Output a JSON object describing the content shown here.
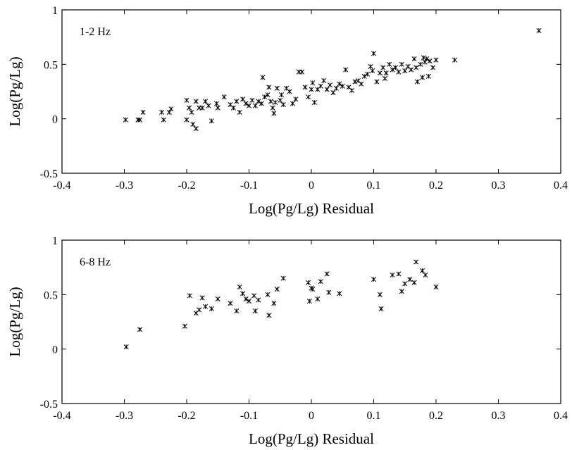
{
  "chart_data": [
    {
      "type": "scatter",
      "annotation": "1-2 Hz",
      "xlabel": "Log(Pg/Lg) Residual",
      "ylabel": "Log(Pg/Lg)",
      "xlim": [
        -0.4,
        0.4
      ],
      "ylim": [
        -0.5,
        1
      ],
      "xticks": [
        "-0.4",
        "-0.3",
        "-0.2",
        "-0.1",
        "0",
        "0.1",
        "0.2",
        "0.3",
        "0.4"
      ],
      "yticks": [
        "-0.5",
        "0",
        "0.5",
        "1"
      ],
      "marker": "x",
      "points": [
        [
          -0.298,
          -0.01
        ],
        [
          -0.278,
          -0.01
        ],
        [
          -0.275,
          -0.01
        ],
        [
          -0.27,
          0.06
        ],
        [
          -0.24,
          0.06
        ],
        [
          -0.237,
          -0.01
        ],
        [
          -0.228,
          0.06
        ],
        [
          -0.225,
          0.09
        ],
        [
          -0.2,
          0.17
        ],
        [
          -0.2,
          -0.01
        ],
        [
          -0.196,
          0.1
        ],
        [
          -0.192,
          0.06
        ],
        [
          -0.19,
          -0.05
        ],
        [
          -0.185,
          0.16
        ],
        [
          -0.185,
          -0.09
        ],
        [
          -0.18,
          0.1
        ],
        [
          -0.175,
          0.1
        ],
        [
          -0.17,
          0.16
        ],
        [
          -0.165,
          0.12
        ],
        [
          -0.16,
          -0.02
        ],
        [
          -0.152,
          0.14
        ],
        [
          -0.15,
          0.1
        ],
        [
          -0.14,
          0.2
        ],
        [
          -0.13,
          0.13
        ],
        [
          -0.125,
          0.1
        ],
        [
          -0.12,
          0.16
        ],
        [
          -0.115,
          0.06
        ],
        [
          -0.11,
          0.18
        ],
        [
          -0.105,
          0.14
        ],
        [
          -0.1,
          0.12
        ],
        [
          -0.095,
          0.17
        ],
        [
          -0.09,
          0.12
        ],
        [
          -0.085,
          0.16
        ],
        [
          -0.08,
          0.14
        ],
        [
          -0.078,
          0.38
        ],
        [
          -0.075,
          0.2
        ],
        [
          -0.07,
          0.22
        ],
        [
          -0.068,
          0.29
        ],
        [
          -0.065,
          0.16
        ],
        [
          -0.062,
          0.1
        ],
        [
          -0.06,
          0.05
        ],
        [
          -0.058,
          0.15
        ],
        [
          -0.055,
          0.28
        ],
        [
          -0.05,
          0.17
        ],
        [
          -0.048,
          0.22
        ],
        [
          -0.045,
          0.13
        ],
        [
          -0.04,
          0.28
        ],
        [
          -0.035,
          0.25
        ],
        [
          -0.03,
          0.14
        ],
        [
          -0.025,
          0.18
        ],
        [
          -0.02,
          0.43
        ],
        [
          -0.015,
          0.43
        ],
        [
          -0.01,
          0.29
        ],
        [
          -0.005,
          0.2
        ],
        [
          0.0,
          0.27
        ],
        [
          0.002,
          0.33
        ],
        [
          0.005,
          0.15
        ],
        [
          0.01,
          0.27
        ],
        [
          0.015,
          0.3
        ],
        [
          0.02,
          0.35
        ],
        [
          0.025,
          0.27
        ],
        [
          0.03,
          0.31
        ],
        [
          0.035,
          0.24
        ],
        [
          0.04,
          0.28
        ],
        [
          0.045,
          0.32
        ],
        [
          0.05,
          0.3
        ],
        [
          0.055,
          0.45
        ],
        [
          0.06,
          0.29
        ],
        [
          0.065,
          0.26
        ],
        [
          0.07,
          0.34
        ],
        [
          0.075,
          0.35
        ],
        [
          0.08,
          0.32
        ],
        [
          0.085,
          0.39
        ],
        [
          0.09,
          0.41
        ],
        [
          0.095,
          0.48
        ],
        [
          0.098,
          0.44
        ],
        [
          0.1,
          0.6
        ],
        [
          0.105,
          0.34
        ],
        [
          0.11,
          0.42
        ],
        [
          0.115,
          0.47
        ],
        [
          0.118,
          0.37
        ],
        [
          0.12,
          0.42
        ],
        [
          0.125,
          0.5
        ],
        [
          0.13,
          0.45
        ],
        [
          0.135,
          0.47
        ],
        [
          0.14,
          0.43
        ],
        [
          0.145,
          0.5
        ],
        [
          0.15,
          0.44
        ],
        [
          0.155,
          0.48
        ],
        [
          0.16,
          0.45
        ],
        [
          0.165,
          0.55
        ],
        [
          0.168,
          0.47
        ],
        [
          0.17,
          0.34
        ],
        [
          0.175,
          0.5
        ],
        [
          0.178,
          0.38
        ],
        [
          0.18,
          0.56
        ],
        [
          0.182,
          0.52
        ],
        [
          0.185,
          0.55
        ],
        [
          0.188,
          0.39
        ],
        [
          0.19,
          0.53
        ],
        [
          0.195,
          0.47
        ],
        [
          0.2,
          0.54
        ],
        [
          0.23,
          0.54
        ],
        [
          0.365,
          0.81
        ]
      ]
    },
    {
      "type": "scatter",
      "annotation": "6-8 Hz",
      "xlabel": "Log(Pg/Lg) Residual",
      "ylabel": "Log(Pg/Lg)",
      "xlim": [
        -0.4,
        0.4
      ],
      "ylim": [
        -0.5,
        1
      ],
      "xticks": [
        "-0.4",
        "-0.3",
        "-0.2",
        "-0.1",
        "0",
        "0.1",
        "0.2",
        "0.3",
        "0.4"
      ],
      "yticks": [
        "-0.5",
        "0",
        "0.5",
        "1"
      ],
      "marker": "x",
      "points": [
        [
          -0.297,
          0.02
        ],
        [
          -0.275,
          0.18
        ],
        [
          -0.203,
          0.21
        ],
        [
          -0.195,
          0.49
        ],
        [
          -0.185,
          0.33
        ],
        [
          -0.18,
          0.36
        ],
        [
          -0.175,
          0.47
        ],
        [
          -0.17,
          0.39
        ],
        [
          -0.16,
          0.37
        ],
        [
          -0.15,
          0.46
        ],
        [
          -0.13,
          0.42
        ],
        [
          -0.12,
          0.35
        ],
        [
          -0.115,
          0.57
        ],
        [
          -0.11,
          0.51
        ],
        [
          -0.105,
          0.46
        ],
        [
          -0.1,
          0.44
        ],
        [
          -0.092,
          0.49
        ],
        [
          -0.09,
          0.35
        ],
        [
          -0.085,
          0.45
        ],
        [
          -0.07,
          0.5
        ],
        [
          -0.068,
          0.31
        ],
        [
          -0.06,
          0.42
        ],
        [
          -0.055,
          0.55
        ],
        [
          -0.045,
          0.65
        ],
        [
          -0.005,
          0.61
        ],
        [
          -0.003,
          0.44
        ],
        [
          0.0,
          0.56
        ],
        [
          0.002,
          0.55
        ],
        [
          0.01,
          0.46
        ],
        [
          0.015,
          0.62
        ],
        [
          0.025,
          0.69
        ],
        [
          0.028,
          0.52
        ],
        [
          0.045,
          0.51
        ],
        [
          0.1,
          0.64
        ],
        [
          0.11,
          0.5
        ],
        [
          0.112,
          0.37
        ],
        [
          0.13,
          0.68
        ],
        [
          0.14,
          0.69
        ],
        [
          0.145,
          0.53
        ],
        [
          0.15,
          0.6
        ],
        [
          0.158,
          0.64
        ],
        [
          0.165,
          0.61
        ],
        [
          0.168,
          0.8
        ],
        [
          0.178,
          0.72
        ],
        [
          0.183,
          0.68
        ],
        [
          0.2,
          0.57
        ]
      ]
    }
  ]
}
